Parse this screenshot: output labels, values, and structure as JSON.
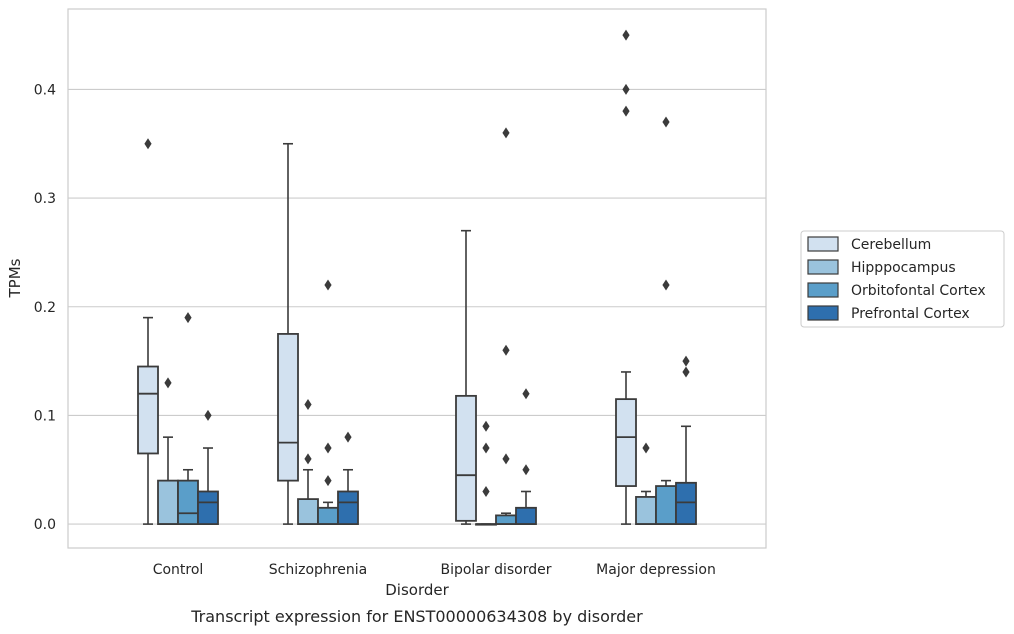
{
  "chart_data": {
    "type": "box",
    "title": "",
    "caption": "Transcript expression for ENST00000634308 by disorder",
    "xlabel": "Disorder",
    "ylabel": "TPMs",
    "ylim": [
      -0.022,
      0.474
    ],
    "yticks": [
      0.0,
      0.1,
      0.2,
      0.3,
      0.4
    ],
    "ytick_labels": [
      "0.0",
      "0.1",
      "0.2",
      "0.3",
      "0.4"
    ],
    "grid": true,
    "legend_position": "right",
    "categories": [
      "Control",
      "Schizophrenia",
      "Bipolar disorder",
      "Major depression"
    ],
    "series": [
      {
        "name": "Cerebellum",
        "color": "#d2e1f0",
        "boxes": [
          {
            "whisker_low": 0.0,
            "q1": 0.065,
            "median": 0.12,
            "q3": 0.145,
            "whisker_high": 0.19,
            "outliers": [
              0.35
            ]
          },
          {
            "whisker_low": 0.0,
            "q1": 0.04,
            "median": 0.075,
            "q3": 0.175,
            "whisker_high": 0.35,
            "outliers": []
          },
          {
            "whisker_low": 0.0,
            "q1": 0.003,
            "median": 0.045,
            "q3": 0.118,
            "whisker_high": 0.27,
            "outliers": []
          },
          {
            "whisker_low": 0.0,
            "q1": 0.035,
            "median": 0.08,
            "q3": 0.115,
            "whisker_high": 0.14,
            "outliers": [
              0.38,
              0.4,
              0.45
            ]
          }
        ]
      },
      {
        "name": "Hipppocampus",
        "color": "#9ac3dd",
        "boxes": [
          {
            "whisker_low": 0.0,
            "q1": 0.0,
            "median": 0.0,
            "q3": 0.04,
            "whisker_high": 0.08,
            "outliers": [
              0.13
            ]
          },
          {
            "whisker_low": 0.0,
            "q1": 0.0,
            "median": 0.0,
            "q3": 0.023,
            "whisker_high": 0.05,
            "outliers": [
              0.06,
              0.11
            ]
          },
          {
            "whisker_low": 0.0,
            "q1": 0.0,
            "median": 0.0,
            "q3": 0.0,
            "whisker_high": 0.0,
            "outliers": [
              0.03,
              0.07,
              0.09
            ]
          },
          {
            "whisker_low": 0.0,
            "q1": 0.0,
            "median": 0.0,
            "q3": 0.025,
            "whisker_high": 0.03,
            "outliers": [
              0.07
            ]
          }
        ]
      },
      {
        "name": "Orbitofontal Cortex",
        "color": "#5a9ec9",
        "boxes": [
          {
            "whisker_low": 0.0,
            "q1": 0.0,
            "median": 0.01,
            "q3": 0.04,
            "whisker_high": 0.05,
            "outliers": [
              0.19
            ]
          },
          {
            "whisker_low": 0.0,
            "q1": 0.0,
            "median": 0.0,
            "q3": 0.015,
            "whisker_high": 0.02,
            "outliers": [
              0.04,
              0.07,
              0.22
            ]
          },
          {
            "whisker_low": 0.0,
            "q1": 0.0,
            "median": 0.0,
            "q3": 0.008,
            "whisker_high": 0.01,
            "outliers": [
              0.06,
              0.16,
              0.36
            ]
          },
          {
            "whisker_low": 0.0,
            "q1": 0.0,
            "median": 0.0,
            "q3": 0.035,
            "whisker_high": 0.04,
            "outliers": [
              0.22,
              0.37
            ]
          }
        ]
      },
      {
        "name": "Prefrontal Cortex",
        "color": "#2e6fae",
        "boxes": [
          {
            "whisker_low": 0.0,
            "q1": 0.0,
            "median": 0.02,
            "q3": 0.03,
            "whisker_high": 0.07,
            "outliers": [
              0.1
            ]
          },
          {
            "whisker_low": 0.0,
            "q1": 0.0,
            "median": 0.02,
            "q3": 0.03,
            "whisker_high": 0.05,
            "outliers": [
              0.08
            ]
          },
          {
            "whisker_low": 0.0,
            "q1": 0.0,
            "median": 0.0,
            "q3": 0.015,
            "whisker_high": 0.03,
            "outliers": [
              0.05,
              0.12
            ]
          },
          {
            "whisker_low": 0.0,
            "q1": 0.0,
            "median": 0.02,
            "q3": 0.038,
            "whisker_high": 0.09,
            "outliers": [
              0.14,
              0.15
            ]
          }
        ]
      }
    ]
  }
}
